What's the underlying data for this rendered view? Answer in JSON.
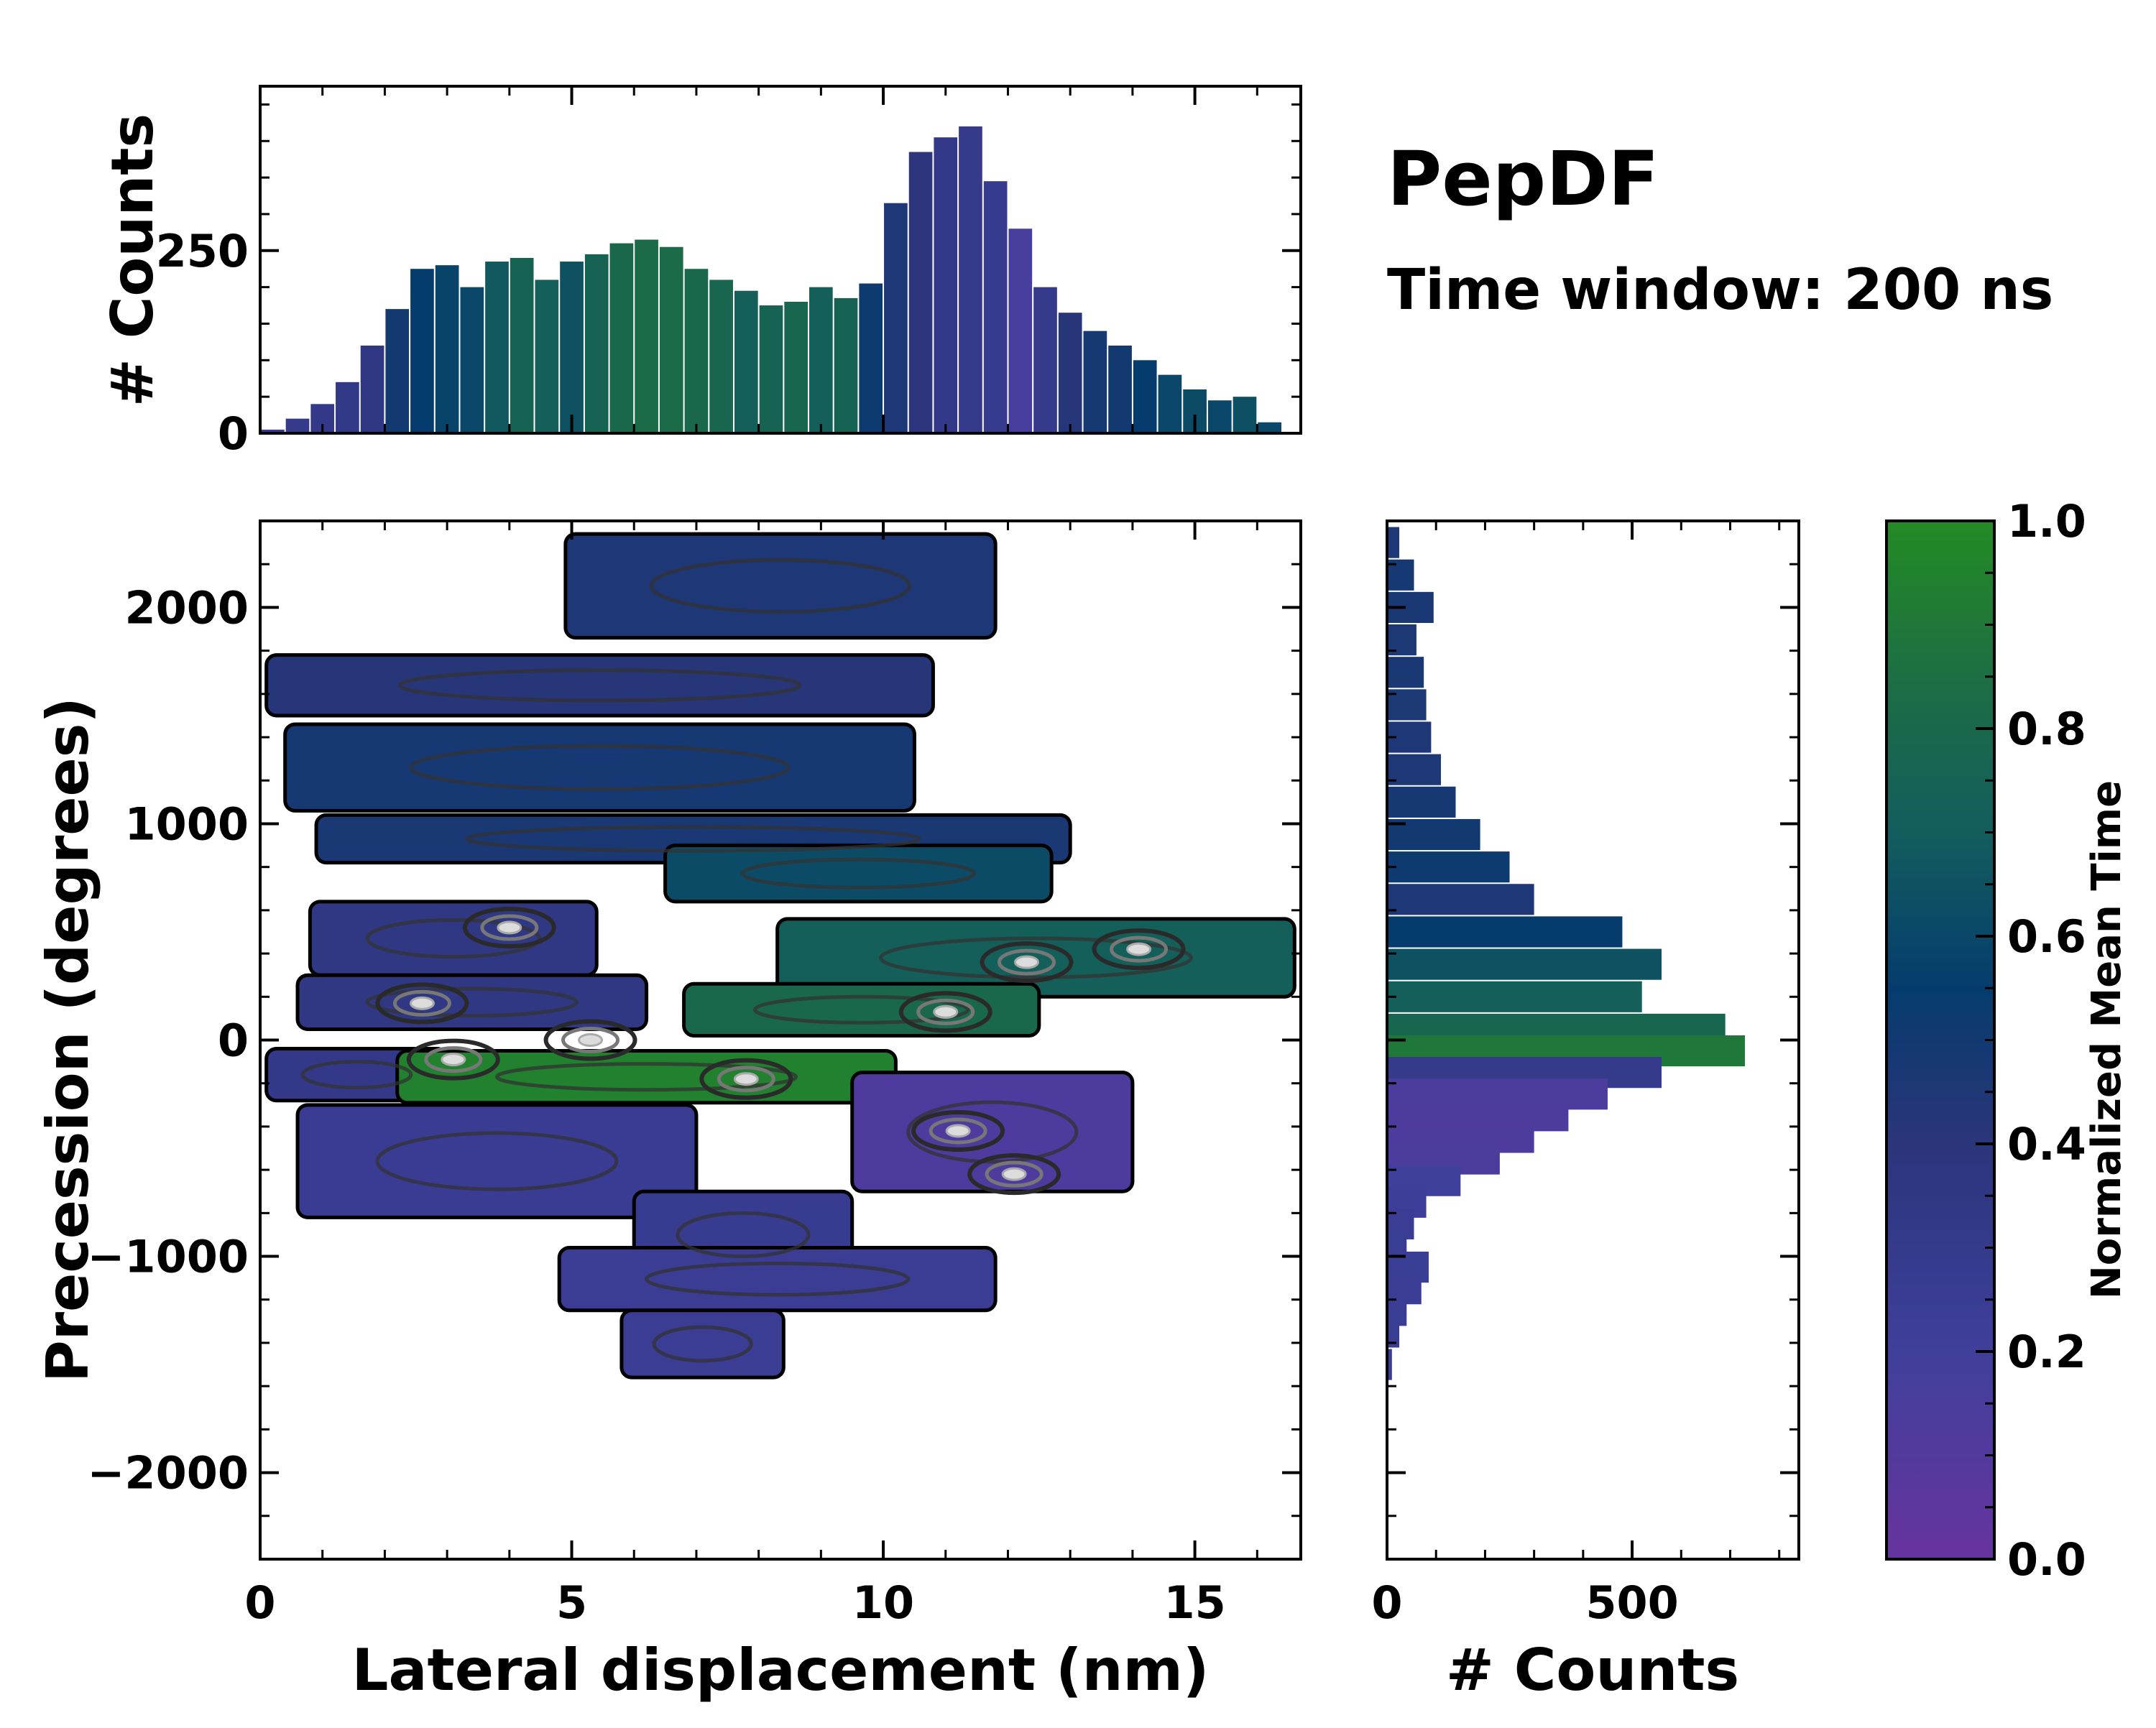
{
  "title": "PepDF",
  "subtitle": "Time window: 200 ns",
  "colormap": {
    "label": "Normalized Mean Time",
    "stops": [
      {
        "t": 0.0,
        "color": "#67349e"
      },
      {
        "t": 0.2,
        "color": "#3f3f9c"
      },
      {
        "t": 0.4,
        "color": "#2b357a"
      },
      {
        "t": 0.55,
        "color": "#053c6d"
      },
      {
        "t": 0.7,
        "color": "#135d5d"
      },
      {
        "t": 0.85,
        "color": "#1d6e43"
      },
      {
        "t": 1.0,
        "color": "#238b24"
      }
    ],
    "ticks": [
      "0.0",
      "0.2",
      "0.4",
      "0.6",
      "0.8",
      "1.0"
    ],
    "tick_values": [
      0,
      0.2,
      0.4,
      0.6,
      0.8,
      1.0
    ]
  },
  "chart_data": [
    {
      "id": "joint",
      "type": "heatmap",
      "xlabel": "Lateral displacement (nm)",
      "ylabel": "Precession (degrees)",
      "xlim": [
        0,
        16.7
      ],
      "ylim": [
        -2400,
        2400
      ],
      "xticks": [
        0,
        5,
        10,
        15
      ],
      "xtick_labels": [
        "0",
        "5",
        "10",
        "15"
      ],
      "yticks": [
        -2000,
        -1000,
        0,
        1000,
        2000
      ],
      "ytick_labels": [
        "−2000",
        "−1000",
        "0",
        "1000",
        "2000"
      ],
      "regions": [
        {
          "x": [
            4.9,
            11.8
          ],
          "y": [
            1860,
            2340
          ],
          "t": 0.45
        },
        {
          "x": [
            0.1,
            10.8
          ],
          "y": [
            1500,
            1780
          ],
          "t": 0.42
        },
        {
          "x": [
            0.4,
            10.5
          ],
          "y": [
            1060,
            1460
          ],
          "t": 0.48
        },
        {
          "x": [
            0.9,
            13.0
          ],
          "y": [
            820,
            1040
          ],
          "t": 0.47
        },
        {
          "x": [
            6.5,
            12.7
          ],
          "y": [
            640,
            900
          ],
          "t": 0.62
        },
        {
          "x": [
            0.8,
            5.4
          ],
          "y": [
            300,
            640
          ],
          "t": 0.35
        },
        {
          "x": [
            8.3,
            16.6
          ],
          "y": [
            200,
            560
          ],
          "t": 0.72
        },
        {
          "x": [
            0.6,
            6.2
          ],
          "y": [
            50,
            300
          ],
          "t": 0.35
        },
        {
          "x": [
            6.8,
            12.5
          ],
          "y": [
            20,
            260
          ],
          "t": 0.8
        },
        {
          "x": [
            0.1,
            3.0
          ],
          "y": [
            -280,
            -40
          ],
          "t": 0.32
        },
        {
          "x": [
            2.2,
            10.2
          ],
          "y": [
            -290,
            -50
          ],
          "t": 0.95
        },
        {
          "x": [
            9.5,
            14.0
          ],
          "y": [
            -700,
            -150
          ],
          "t": 0.12
        },
        {
          "x": [
            0.6,
            7.0
          ],
          "y": [
            -820,
            -300
          ],
          "t": 0.26
        },
        {
          "x": [
            6.0,
            9.5
          ],
          "y": [
            -1100,
            -700
          ],
          "t": 0.27
        },
        {
          "x": [
            4.8,
            11.8
          ],
          "y": [
            -1250,
            -960
          ],
          "t": 0.24
        },
        {
          "x": [
            5.8,
            8.4
          ],
          "y": [
            -1560,
            -1250
          ],
          "t": 0.24
        }
      ],
      "hotspots": [
        {
          "x": 4.0,
          "y": 520
        },
        {
          "x": 2.6,
          "y": 170
        },
        {
          "x": 5.3,
          "y": 0
        },
        {
          "x": 3.1,
          "y": -90
        },
        {
          "x": 11.0,
          "y": 130
        },
        {
          "x": 12.3,
          "y": 360
        },
        {
          "x": 14.1,
          "y": 420
        },
        {
          "x": 11.2,
          "y": -420
        },
        {
          "x": 12.1,
          "y": -620
        },
        {
          "x": 7.8,
          "y": -180
        }
      ]
    },
    {
      "id": "x_marginal",
      "type": "bar",
      "ylabel": "# Counts",
      "ylim": [
        0,
        475
      ],
      "yticks": [
        0,
        250
      ],
      "ytick_labels": [
        "0",
        "250"
      ],
      "x": [
        0.2,
        0.6,
        1.0,
        1.4,
        1.8,
        2.2,
        2.6,
        3.0,
        3.4,
        3.8,
        4.2,
        4.6,
        5.0,
        5.4,
        5.8,
        6.2,
        6.6,
        7.0,
        7.4,
        7.8,
        8.2,
        8.6,
        9.0,
        9.4,
        9.8,
        10.2,
        10.6,
        11.0,
        11.4,
        11.8,
        12.2,
        12.6,
        13.0,
        13.4,
        13.8,
        14.2,
        14.6,
        15.0,
        15.4,
        15.8,
        16.2
      ],
      "values": [
        5,
        20,
        40,
        70,
        120,
        170,
        225,
        230,
        200,
        235,
        240,
        210,
        235,
        245,
        260,
        265,
        255,
        225,
        210,
        195,
        175,
        180,
        200,
        185,
        205,
        315,
        385,
        405,
        420,
        345,
        280,
        200,
        165,
        140,
        120,
        100,
        80,
        60,
        45,
        50,
        15
      ],
      "t": [
        0.28,
        0.3,
        0.32,
        0.33,
        0.35,
        0.5,
        0.55,
        0.58,
        0.6,
        0.68,
        0.75,
        0.72,
        0.65,
        0.75,
        0.8,
        0.82,
        0.82,
        0.8,
        0.78,
        0.72,
        0.75,
        0.78,
        0.72,
        0.75,
        0.52,
        0.45,
        0.38,
        0.32,
        0.3,
        0.28,
        0.16,
        0.3,
        0.42,
        0.48,
        0.5,
        0.55,
        0.6,
        0.62,
        0.6,
        0.64,
        0.6
      ]
    },
    {
      "id": "y_marginal",
      "type": "bar",
      "orientation": "horizontal",
      "xlabel": "# Counts",
      "xlim": [
        0,
        840
      ],
      "xticks": [
        0,
        500
      ],
      "xtick_labels": [
        "0",
        "500"
      ],
      "y": [
        2300,
        2150,
        2000,
        1850,
        1700,
        1550,
        1400,
        1250,
        1100,
        950,
        800,
        650,
        500,
        350,
        200,
        50,
        -50,
        -150,
        -250,
        -350,
        -450,
        -550,
        -650,
        -750,
        -850,
        -950,
        -1050,
        -1150,
        -1250,
        -1350,
        -1500
      ],
      "values": [
        25,
        55,
        95,
        60,
        75,
        80,
        90,
        110,
        140,
        190,
        250,
        300,
        480,
        560,
        520,
        690,
        730,
        560,
        450,
        370,
        300,
        230,
        150,
        80,
        55,
        40,
        85,
        70,
        40,
        25,
        10
      ],
      "t": [
        0.45,
        0.48,
        0.47,
        0.46,
        0.47,
        0.46,
        0.45,
        0.45,
        0.48,
        0.5,
        0.52,
        0.45,
        0.55,
        0.65,
        0.72,
        0.78,
        0.9,
        0.3,
        0.14,
        0.13,
        0.12,
        0.14,
        0.2,
        0.22,
        0.24,
        0.25,
        0.25,
        0.24,
        0.24,
        0.25,
        0.24
      ]
    }
  ]
}
